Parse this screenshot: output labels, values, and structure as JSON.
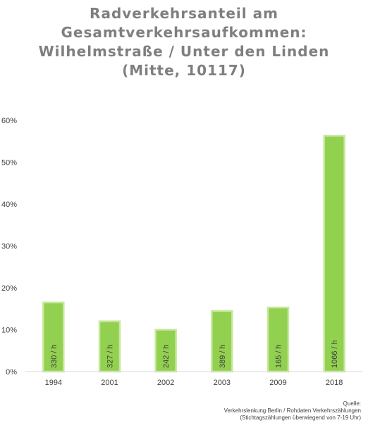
{
  "chart_data": {
    "type": "bar",
    "title_lines": [
      "Radverkehrsanteil am",
      "Gesamtverkehrsaufkommen:",
      "Wilhelmstraße / Unter den Linden",
      "(Mitte, 10117)"
    ],
    "categories": [
      "1994",
      "2001",
      "2002",
      "2003",
      "2009",
      "2018"
    ],
    "values": [
      0.165,
      0.12,
      0.1,
      0.145,
      0.153,
      0.563
    ],
    "data_labels": [
      "330 / h",
      "327 / h",
      "242 / h",
      "389 / h",
      "165 / h",
      "1066 / h"
    ],
    "ylim": [
      0,
      0.6
    ],
    "y_ticks": [
      "0%",
      "10%",
      "20%",
      "30%",
      "40%",
      "50%",
      "60%"
    ],
    "xlabel": "",
    "ylabel": "",
    "grid": false,
    "legend": "none",
    "colors": {
      "bar_fill": "#92d050",
      "bar_edge": "#c8e89f",
      "title": "#7f7f7f",
      "axis": "#d9d9d9",
      "text": "#404040"
    }
  },
  "source": {
    "line1": "Quelle:",
    "line2": "Verkehrslenkung Berlin / Rohdaten Verkehrszählungen",
    "line3": "(Stichtagszählungen überwiegend von 7-19 Uhr)"
  }
}
